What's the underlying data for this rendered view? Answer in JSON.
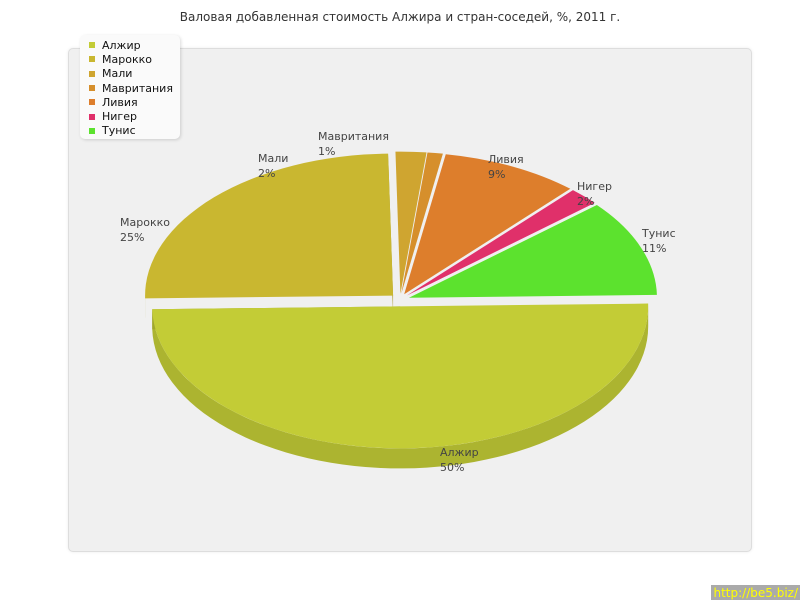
{
  "chart_data": {
    "type": "pie",
    "title": "Валовая добавленная стоимость Алжира и стран-соседей, %, 2011 г.",
    "legend_position": "top-left",
    "three_d": true,
    "slices": [
      {
        "label": "Алжир",
        "value": 50,
        "text": "50%",
        "color": "#c3cc36"
      },
      {
        "label": "Марокко",
        "value": 25,
        "text": "25%",
        "color": "#c9b730"
      },
      {
        "label": "Мали",
        "value": 2,
        "text": "2%",
        "color": "#cfa530"
      },
      {
        "label": "Мавритания",
        "value": 1,
        "text": "1%",
        "color": "#d68f2c"
      },
      {
        "label": "Ливия",
        "value": 9,
        "text": "9%",
        "color": "#dd7e2c"
      },
      {
        "label": "Нигер",
        "value": 2,
        "text": "2%",
        "color": "#e0306a"
      },
      {
        "label": "Тунис",
        "value": 11,
        "text": "11%",
        "color": "#5ce22e"
      }
    ]
  },
  "watermark": "http://be5.biz/"
}
